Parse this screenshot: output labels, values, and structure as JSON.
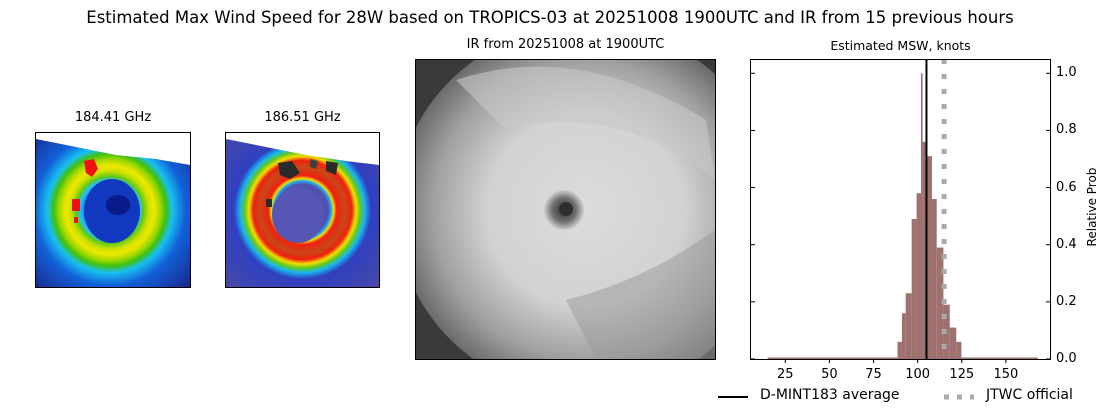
{
  "suptitle": "Estimated Max Wind Speed for 28W based on TROPICS-03 at 20251008 1900UTC and IR from 15 previous hours",
  "panels": {
    "mw1": {
      "title": "184.41 GHz"
    },
    "mw2": {
      "title": "186.51 GHz"
    },
    "ir": {
      "title": "IR from 20251008 at 1900UTC"
    },
    "hist": {
      "title": "Estimated MSW, knots",
      "ylabel": "Relative Prob"
    }
  },
  "legend": {
    "items": [
      {
        "label": "D-MINT183 average",
        "style": "solid",
        "color": "#000000"
      },
      {
        "label": "JTWC official",
        "style": "dotted",
        "color": "#aaaaaa"
      }
    ]
  },
  "chart_data": {
    "type": "bar",
    "title": "Estimated MSW, knots",
    "xlabel": "",
    "ylabel": "Relative Prob",
    "xlim": [
      5,
      175
    ],
    "ylim": [
      0,
      1.05
    ],
    "xticks": [
      25,
      50,
      75,
      100,
      125,
      150
    ],
    "xtick_labels": [
      "25",
      "50",
      "75",
      "100",
      "125",
      "150"
    ],
    "yticks": [
      0.0,
      0.2,
      0.4,
      0.6,
      0.8,
      1.0
    ],
    "ytick_labels": [
      "0.0",
      "0.2",
      "0.4",
      "0.6",
      "0.8",
      "1.0"
    ],
    "yaxis_side": "right",
    "bar_color": "#9e716e",
    "baseline_range": [
      15,
      168
    ],
    "bins": [
      {
        "x0": 88.6,
        "x1": 91.1,
        "value": 0.06
      },
      {
        "x0": 91.1,
        "x1": 93.2,
        "value": 0.16
      },
      {
        "x0": 93.2,
        "x1": 96.6,
        "value": 0.23
      },
      {
        "x0": 96.6,
        "x1": 99.4,
        "value": 0.49
      },
      {
        "x0": 99.4,
        "x1": 101.9,
        "value": 0.58
      },
      {
        "x0": 101.9,
        "x1": 102.8,
        "value": 1.0
      },
      {
        "x0": 102.8,
        "x1": 104.7,
        "value": 0.76
      },
      {
        "x0": 104.7,
        "x1": 108.1,
        "value": 0.71
      },
      {
        "x0": 108.1,
        "x1": 110.8,
        "value": 0.56
      },
      {
        "x0": 110.8,
        "x1": 114.6,
        "value": 0.39
      },
      {
        "x0": 114.6,
        "x1": 118.2,
        "value": 0.19
      },
      {
        "x0": 118.2,
        "x1": 121.9,
        "value": 0.11
      },
      {
        "x0": 121.9,
        "x1": 124.8,
        "value": 0.06
      }
    ],
    "vlines": [
      {
        "name": "D-MINT183 average",
        "x": 105,
        "style": "solid",
        "color": "#000000"
      },
      {
        "name": "JTWC official",
        "x": 115,
        "style": "dotted",
        "color": "#aaaaaa"
      }
    ],
    "legend_position": "below-right"
  }
}
